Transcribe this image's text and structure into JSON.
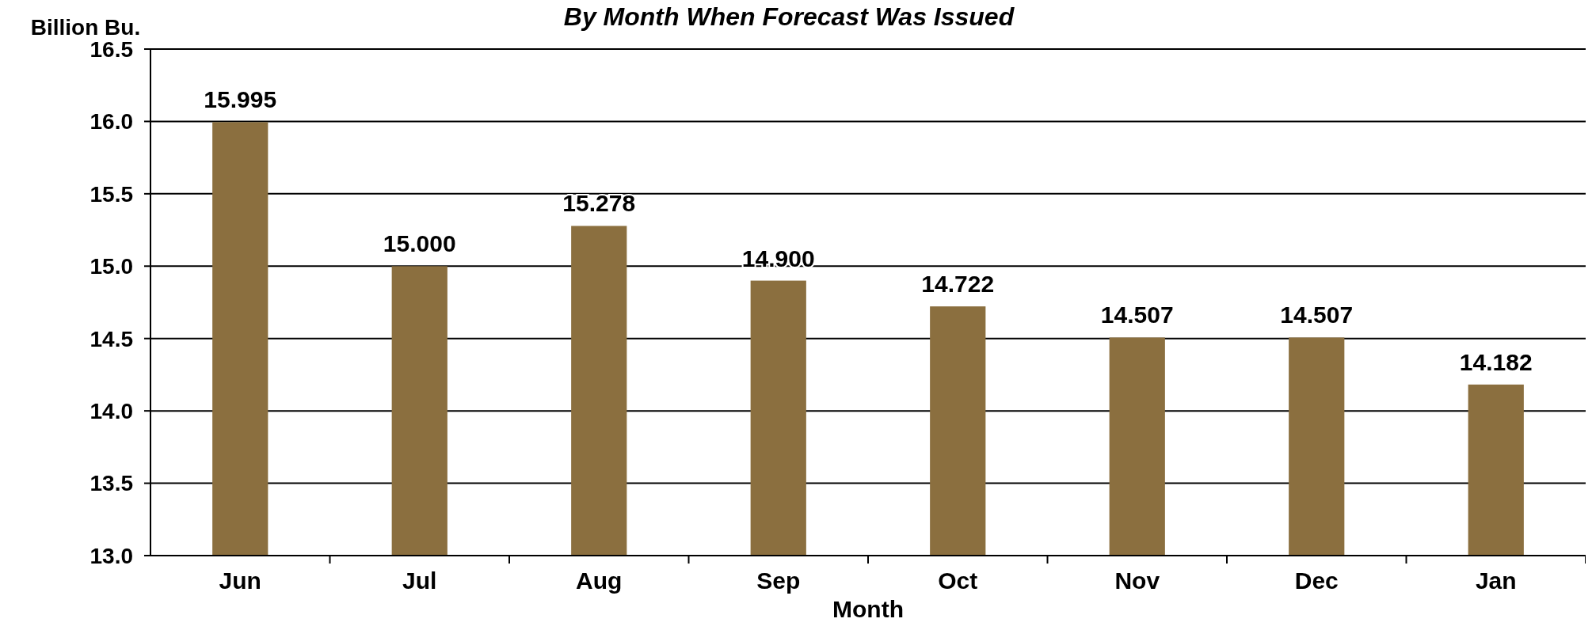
{
  "chart_data": {
    "type": "bar",
    "title": "By Month When Forecast Was Issued",
    "xlabel": "Month",
    "ylabel": "Billion Bu.",
    "categories": [
      "Jun",
      "Jul",
      "Aug",
      "Sep",
      "Oct",
      "Nov",
      "Dec",
      "Jan"
    ],
    "values": [
      15.995,
      15.0,
      15.278,
      14.9,
      14.722,
      14.507,
      14.507,
      14.182
    ],
    "value_labels": [
      "15.995",
      "15.000",
      "15.278",
      "14.900",
      "14.722",
      "14.507",
      "14.507",
      "14.182"
    ],
    "color": "#8b6f3f",
    "ylim": [
      13.0,
      16.5
    ],
    "yticks": [
      {
        "value": 13,
        "label": "13.0"
      },
      {
        "value": 13.5,
        "label": "13.5"
      },
      {
        "value": 14,
        "label": "14.0"
      },
      {
        "value": 14.5,
        "label": "14.5"
      },
      {
        "value": 15,
        "label": "15.0"
      },
      {
        "value": 15.5,
        "label": "15.5"
      },
      {
        "value": 16,
        "label": "16.0"
      },
      {
        "value": 16.5,
        "label": "16.5"
      }
    ],
    "grid": "y"
  }
}
